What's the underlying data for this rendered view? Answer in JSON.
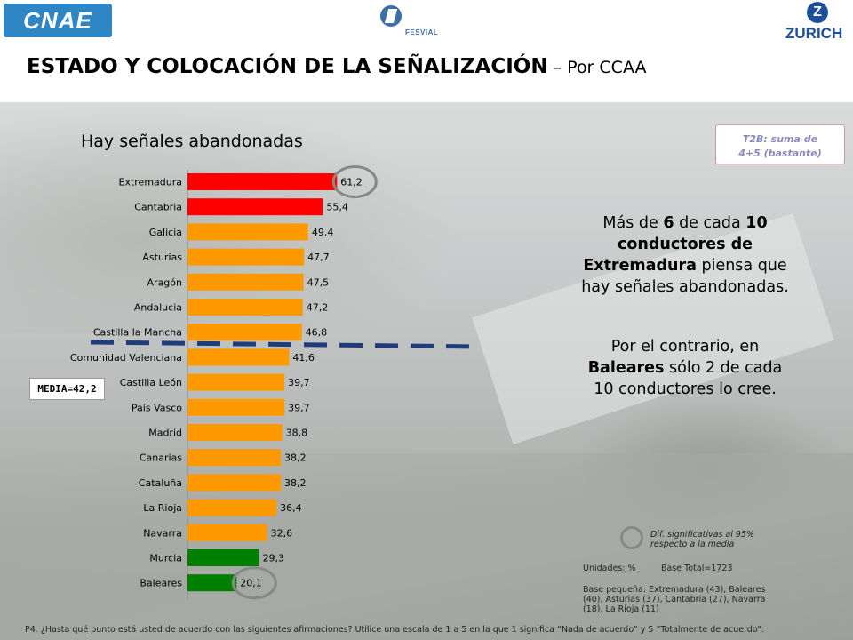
{
  "header": {
    "logo_left": "CNAE",
    "logo_center": "FESVIAL",
    "logo_right_mark": "Z",
    "logo_right": "ZURICH"
  },
  "title": {
    "main": "ESTADO Y COLOCACIÓN DE LA SEÑALIZACIÓN",
    "suffix": " – Por CCAA"
  },
  "t2b_note": {
    "line1": "T2B: suma de",
    "line2": "4+5 (bastante)"
  },
  "media_label": "MEDIA=42,2",
  "callouts": {
    "c1": {
      "p1": "Más de ",
      "b1": "6",
      "p2": " de cada ",
      "b2": "10",
      "p3": " ",
      "b3": "conductores de Extremadura",
      "p4": " piensa que hay señales abandonadas."
    },
    "c2": {
      "p1": "Por el contrario, en ",
      "b1": "Baleares",
      "p2": " sólo 2 de cada 10 conductores lo cree."
    }
  },
  "legend": {
    "line1": "Dif. significativas al 95%",
    "line2": "respecto a la media"
  },
  "units": "Unidades: %",
  "base_total": "Base Total=1723",
  "base_small": "Base pequeña: Extremadura (43), Baleares (40), Asturias (37), Cantabria (27), Navarra (18), La Rioja (11)",
  "footnote": "P4. ¿Hasta qué punto está usted de acuerdo con las siguientes afirmaciones? Utilice una escala de 1 a 5 en la que 1 significa “Nada de acuerdo” y 5 “Totalmente de acuerdo”.",
  "colors": {
    "above": "#ff0000",
    "middle": "#ff9900",
    "below": "#008000",
    "media_line": "#1f3d7a"
  },
  "chart_data": {
    "type": "bar",
    "orientation": "horizontal",
    "title": "Hay señales abandonadas",
    "categories": [
      "Extremadura",
      "Cantabria",
      "Galicia",
      "Asturias",
      "Aragón",
      "Andalucia",
      "Castilla la Mancha",
      "Comunidad Valenciana",
      "Castilla León",
      "País Vasco",
      "Madrid",
      "Canarias",
      "Cataluña",
      "La Rioja",
      "Navarra",
      "Murcia",
      "Baleares"
    ],
    "values": [
      61.2,
      55.4,
      49.4,
      47.7,
      47.5,
      47.2,
      46.8,
      41.6,
      39.7,
      39.7,
      38.8,
      38.2,
      38.2,
      36.4,
      32.6,
      29.3,
      20.1
    ],
    "value_labels": [
      "61,2",
      "55,4",
      "49,4",
      "47,7",
      "47,5",
      "47,2",
      "46,8",
      "41,6",
      "39,7",
      "39,7",
      "38,8",
      "38,2",
      "38,2",
      "36,4",
      "32,6",
      "29,3",
      "20,1"
    ],
    "bar_colors": [
      "red",
      "red",
      "orange",
      "orange",
      "orange",
      "orange",
      "orange",
      "orange",
      "orange",
      "orange",
      "orange",
      "orange",
      "orange",
      "orange",
      "orange",
      "green",
      "green"
    ],
    "significant": [
      "Extremadura",
      "Baleares"
    ],
    "reference_line": {
      "label": "MEDIA=42,2",
      "value": 42.2
    },
    "xlim": [
      0,
      70
    ],
    "grid": false,
    "legend": "none"
  }
}
